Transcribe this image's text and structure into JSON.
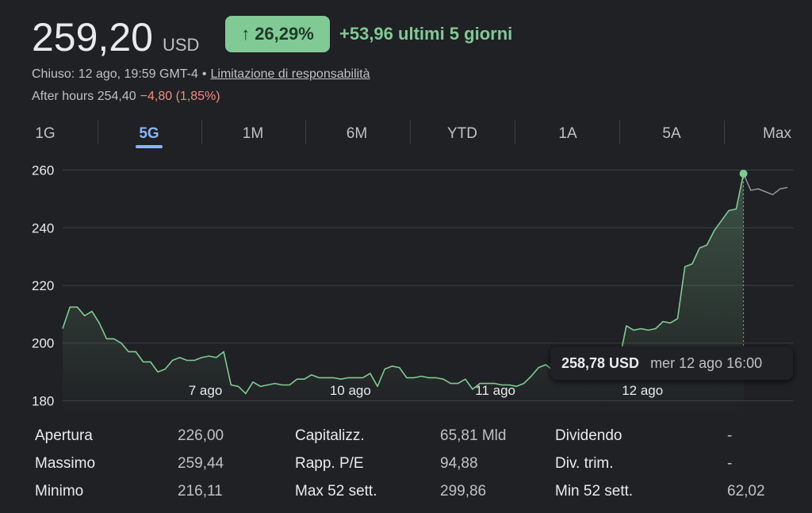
{
  "header": {
    "price": "259,20",
    "currency": "USD",
    "percent_change": "26,29%",
    "change_text": "+53,96 ultimi 5 giorni",
    "status": "Chiuso: 12 ago, 19:59 GMT-4",
    "disclaimer_link": "Limitazione di responsabilità",
    "after_hours": "After hours 254,40",
    "after_hours_change": "−4,80 (1,85%)"
  },
  "tabs": [
    {
      "label": "1G",
      "active": false
    },
    {
      "label": "5G",
      "active": true
    },
    {
      "label": "1M",
      "active": false
    },
    {
      "label": "6M",
      "active": false
    },
    {
      "label": "YTD",
      "active": false
    },
    {
      "label": "1A",
      "active": false
    },
    {
      "label": "5A",
      "active": false
    },
    {
      "label": "Max",
      "active": false
    }
  ],
  "tooltip": {
    "value": "258,78 USD",
    "date": "mer 12 ago 16:00"
  },
  "colors": {
    "background": "#202124",
    "positive": "#81c995",
    "negative": "#f28b82",
    "accent": "#8ab4f8",
    "grid": "#3c4043"
  },
  "stats": [
    {
      "label": "Apertura",
      "value": "226,00"
    },
    {
      "label": "Massimo",
      "value": "259,44"
    },
    {
      "label": "Minimo",
      "value": "216,11"
    },
    {
      "label": "Capitalizz.",
      "value": "65,81 Mld"
    },
    {
      "label": "Rapp. P/E",
      "value": "94,88"
    },
    {
      "label": "Max 52 sett.",
      "value": "299,86"
    },
    {
      "label": "Dividendo",
      "value": "-"
    },
    {
      "label": "Div. trim.",
      "value": "-"
    },
    {
      "label": "Min 52 sett.",
      "value": "62,02"
    }
  ],
  "chart_data": {
    "type": "area",
    "ylim": [
      176,
      264
    ],
    "yticks": [
      180,
      200,
      220,
      240,
      260
    ],
    "ytick_labels": [
      "180",
      "200",
      "220",
      "240",
      "260"
    ],
    "x_range": [
      0,
      99
    ],
    "xticks": [
      {
        "label": "7 ago",
        "x": 19.5
      },
      {
        "label": "10 ago",
        "x": 39.3
      },
      {
        "label": "11 ago",
        "x": 59.1
      },
      {
        "label": "12 ago",
        "x": 79.2
      }
    ],
    "grid": true,
    "highlight_index": 93,
    "series": [
      {
        "values": [
          205,
          212.5,
          212.5,
          209.5,
          211,
          207,
          201.5,
          201.5,
          200,
          197,
          197,
          193.5,
          193.5,
          190,
          191,
          194,
          195,
          194,
          194,
          195,
          195.5,
          195,
          197,
          185.5,
          185,
          182.5,
          186.5,
          185,
          185.5,
          186,
          185.5,
          185.5,
          187.5,
          187.5,
          189,
          188,
          188,
          188,
          187.5,
          188,
          188,
          188,
          189.5,
          185,
          191,
          192,
          191.5,
          188,
          188,
          188.5,
          188,
          188,
          187.5,
          186,
          186,
          187.5,
          184,
          186,
          186,
          186,
          185.5,
          185.5,
          185,
          186,
          188.5,
          191.5,
          192.5,
          190.5,
          190.5,
          192,
          190,
          190.5,
          191,
          189.5,
          191,
          192.5,
          193.5,
          206,
          204.5,
          205,
          204.5,
          205,
          207.5,
          207,
          208.5,
          226.5,
          227.5,
          233,
          234,
          239,
          242.5,
          246,
          246.5,
          258.78,
          253,
          253.5,
          252.5,
          251.5,
          253.5,
          254
        ]
      }
    ]
  }
}
